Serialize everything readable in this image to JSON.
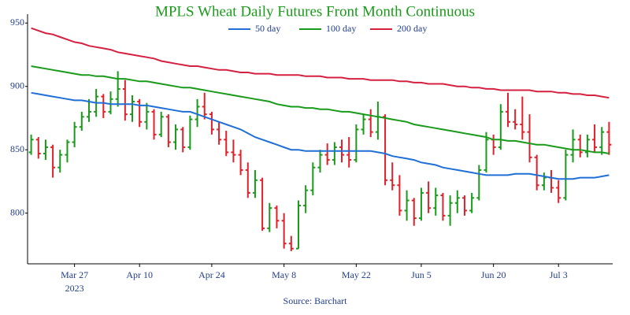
{
  "chart_data": {
    "type": "ohlc",
    "title": "MPLS Wheat Daily Futures Front Month Continuous",
    "source": "Source: Barchart",
    "year_label": "2023",
    "categories": [
      null,
      null,
      null,
      null,
      null,
      null,
      "Mar 27",
      null,
      null,
      null,
      null,
      null,
      null,
      null,
      null,
      "Apr 10",
      null,
      null,
      null,
      null,
      null,
      null,
      null,
      null,
      null,
      "Apr 24",
      null,
      null,
      null,
      null,
      null,
      null,
      null,
      null,
      null,
      "May 8",
      null,
      null,
      null,
      null,
      null,
      null,
      null,
      null,
      null,
      "May 22",
      null,
      null,
      null,
      null,
      null,
      null,
      null,
      null,
      "Jun 5",
      null,
      null,
      null,
      null,
      null,
      null,
      null,
      null,
      null,
      "Jun 20",
      null,
      null,
      null,
      null,
      null,
      null,
      null,
      null,
      "Jul 3",
      null,
      null,
      null,
      null,
      null,
      null,
      null
    ],
    "ohlc": [
      [
        848,
        862,
        846,
        858
      ],
      [
        858,
        860,
        843,
        847
      ],
      [
        847,
        858,
        842,
        852
      ],
      [
        852,
        854,
        828,
        836
      ],
      [
        836,
        850,
        832,
        846
      ],
      [
        846,
        858,
        840,
        856
      ],
      [
        856,
        872,
        852,
        868
      ],
      [
        868,
        880,
        865,
        876
      ],
      [
        876,
        890,
        872,
        880
      ],
      [
        880,
        898,
        876,
        892
      ],
      [
        892,
        894,
        875,
        880
      ],
      [
        880,
        896,
        878,
        890
      ],
      [
        890,
        912,
        884,
        898
      ],
      [
        898,
        905,
        873,
        878
      ],
      [
        878,
        893,
        872,
        888
      ],
      [
        888,
        890,
        868,
        872
      ],
      [
        872,
        887,
        866,
        880
      ],
      [
        880,
        882,
        858,
        862
      ],
      [
        862,
        880,
        860,
        876
      ],
      [
        876,
        878,
        852,
        856
      ],
      [
        856,
        870,
        850,
        866
      ],
      [
        866,
        868,
        848,
        852
      ],
      [
        852,
        877,
        850,
        874
      ],
      [
        874,
        890,
        868,
        884
      ],
      [
        884,
        895,
        874,
        878
      ],
      [
        878,
        880,
        862,
        866
      ],
      [
        866,
        872,
        854,
        858
      ],
      [
        858,
        865,
        845,
        848
      ],
      [
        848,
        858,
        840,
        846
      ],
      [
        846,
        850,
        830,
        834
      ],
      [
        834,
        840,
        812,
        816
      ],
      [
        816,
        834,
        812,
        826
      ],
      [
        826,
        828,
        786,
        788
      ],
      [
        788,
        808,
        785,
        804
      ],
      [
        804,
        806,
        788,
        794
      ],
      [
        794,
        800,
        772,
        776
      ],
      [
        776,
        782,
        770,
        772
      ],
      [
        772,
        810,
        772,
        806
      ],
      [
        806,
        822,
        800,
        818
      ],
      [
        818,
        840,
        814,
        836
      ],
      [
        836,
        850,
        832,
        846
      ],
      [
        846,
        855,
        838,
        842
      ],
      [
        842,
        856,
        838,
        852
      ],
      [
        852,
        858,
        840,
        846
      ],
      [
        846,
        860,
        836,
        842
      ],
      [
        842,
        870,
        840,
        866
      ],
      [
        866,
        878,
        862,
        874
      ],
      [
        874,
        882,
        860,
        864
      ],
      [
        864,
        888,
        858,
        876
      ],
      [
        876,
        878,
        822,
        826
      ],
      [
        826,
        840,
        818,
        822
      ],
      [
        822,
        830,
        798,
        802
      ],
      [
        802,
        818,
        794,
        810
      ],
      [
        810,
        812,
        790,
        796
      ],
      [
        796,
        820,
        794,
        816
      ],
      [
        816,
        825,
        800,
        804
      ],
      [
        804,
        820,
        798,
        814
      ],
      [
        814,
        816,
        794,
        798
      ],
      [
        798,
        814,
        790,
        808
      ],
      [
        808,
        818,
        800,
        812
      ],
      [
        812,
        814,
        798,
        802
      ],
      [
        802,
        816,
        800,
        812
      ],
      [
        812,
        838,
        810,
        834
      ],
      [
        834,
        864,
        832,
        858
      ],
      [
        858,
        862,
        846,
        852
      ],
      [
        852,
        886,
        850,
        880
      ],
      [
        880,
        895,
        868,
        872
      ],
      [
        872,
        882,
        866,
        870
      ],
      [
        870,
        892,
        858,
        864
      ],
      [
        864,
        878,
        840,
        844
      ],
      [
        844,
        846,
        818,
        822
      ],
      [
        822,
        832,
        818,
        828
      ],
      [
        828,
        834,
        816,
        820
      ],
      [
        820,
        826,
        808,
        812
      ],
      [
        812,
        850,
        810,
        846
      ],
      [
        846,
        866,
        840,
        858
      ],
      [
        858,
        862,
        844,
        848
      ],
      [
        848,
        862,
        844,
        858
      ],
      [
        858,
        870,
        848,
        852
      ],
      [
        852,
        868,
        846,
        864
      ],
      [
        864,
        872,
        846,
        854
      ]
    ],
    "up_color": "#1a9a1a",
    "down_color": "#e0202a",
    "series": [
      {
        "name": "50 day",
        "color": "#1f6fd6",
        "values": [
          895,
          894,
          893,
          892,
          891,
          890,
          889,
          889,
          888,
          887,
          887,
          886,
          886,
          886,
          886,
          885,
          885,
          884,
          883,
          882,
          881,
          880,
          880,
          878,
          876,
          874,
          872,
          870,
          868,
          866,
          863,
          860,
          858,
          856,
          854,
          852,
          850,
          850,
          849,
          849,
          849,
          849,
          849,
          849,
          849,
          849,
          849,
          849,
          848,
          847,
          845,
          844,
          843,
          842,
          840,
          839,
          838,
          836,
          835,
          834,
          833,
          832,
          831,
          830,
          830,
          830,
          830,
          831,
          831,
          831,
          830,
          829,
          828,
          827,
          827,
          827,
          828,
          828,
          828,
          829,
          830
        ]
      },
      {
        "name": "100 day",
        "color": "#1a9a1a",
        "values": [
          916,
          915,
          914,
          913,
          912,
          911,
          910,
          909,
          909,
          908,
          908,
          907,
          906,
          906,
          905,
          904,
          904,
          903,
          902,
          901,
          900,
          899,
          899,
          898,
          897,
          896,
          895,
          894,
          893,
          892,
          891,
          890,
          889,
          888,
          886,
          885,
          884,
          884,
          883,
          883,
          882,
          882,
          881,
          880,
          880,
          879,
          878,
          877,
          876,
          875,
          874,
          873,
          872,
          870,
          869,
          868,
          867,
          866,
          865,
          864,
          863,
          862,
          861,
          860,
          858,
          858,
          857,
          857,
          856,
          855,
          854,
          854,
          853,
          852,
          851,
          850,
          850,
          849,
          848,
          848,
          847
        ]
      },
      {
        "name": "200 day",
        "color": "#d62040",
        "values": [
          946,
          944,
          942,
          941,
          939,
          937,
          935,
          934,
          932,
          931,
          930,
          929,
          927,
          926,
          925,
          924,
          923,
          922,
          920,
          919,
          918,
          917,
          916,
          916,
          915,
          914,
          913,
          913,
          912,
          911,
          911,
          910,
          910,
          910,
          909,
          909,
          909,
          909,
          908,
          908,
          908,
          907,
          907,
          907,
          906,
          906,
          906,
          905,
          905,
          905,
          905,
          904,
          904,
          903,
          903,
          902,
          902,
          902,
          901,
          900,
          900,
          899,
          899,
          898,
          898,
          897,
          897,
          897,
          897,
          897,
          896,
          896,
          896,
          895,
          895,
          894,
          894,
          893,
          893,
          892,
          891
        ]
      }
    ],
    "ylim": [
      760,
      957
    ],
    "yticks": [
      800,
      850,
      900,
      950
    ]
  }
}
